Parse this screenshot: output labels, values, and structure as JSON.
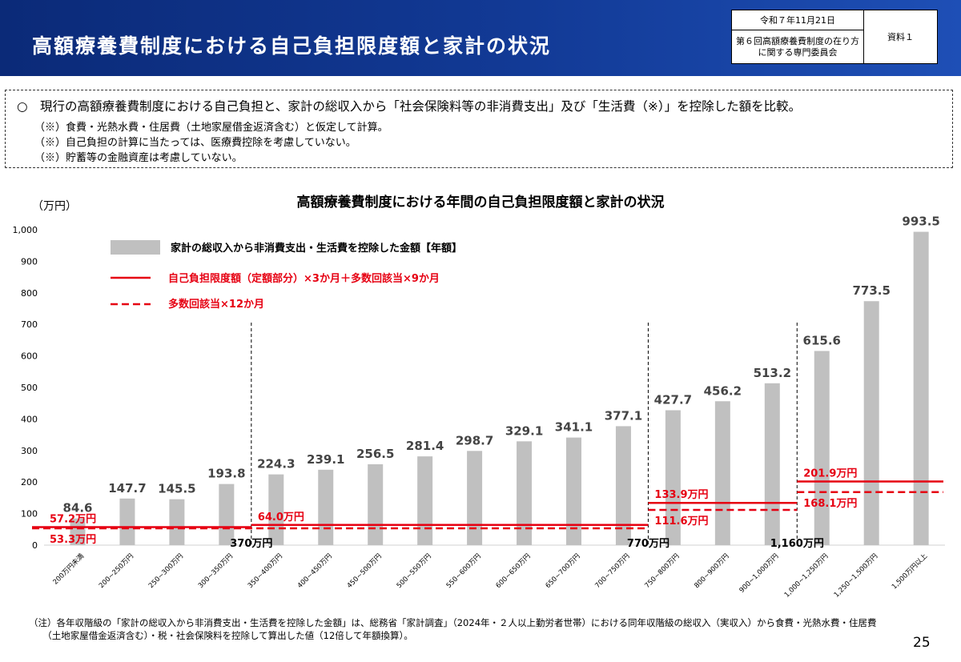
{
  "header": {
    "title": "高額療養費制度における自己負担限度額と家計の状況",
    "date": "令和７年11月21日",
    "committee": "第６回高額療養費制度の在り方に関する専門委員会",
    "doc_label": "資料１",
    "background_color": "#123a96"
  },
  "notes": {
    "main": "○　現行の高額療養費制度における自己負担と、家計の総収入から「社会保険料等の非消費支出」及び「生活費（※）」を控除した額を比較。",
    "sub": [
      "（※）食費・光熱水費・住居費（土地家屋借金返済含む）と仮定して計算。",
      "（※）自己負担の計算に当たっては、医療費控除を考慮していない。",
      "（※）貯蓄等の金融資産は考慮していない。"
    ]
  },
  "chart_data": {
    "type": "bar",
    "title": "高額療養費制度における年間の自己負担限度額と家計の状況",
    "ylabel": "（万円）",
    "ylim": [
      0,
      1000
    ],
    "yticks": [
      "0",
      "100",
      "200",
      "300",
      "400",
      "500",
      "600",
      "700",
      "800",
      "900",
      "1,000"
    ],
    "categories": [
      "200万円未満",
      "200~250万円",
      "250~300万円",
      "300~350万円",
      "350~400万円",
      "400~450万円",
      "450~500万円",
      "500~550万円",
      "550~600万円",
      "600~650万円",
      "650~700万円",
      "700~750万円",
      "750~800万円",
      "800~900万円",
      "900~1,000万円",
      "1,000~1,250万円",
      "1,250~1,500万円",
      "1,500万円以上"
    ],
    "series": [
      {
        "name": "家計の総収入から非消費支出・生活費を控除した金額【年額】",
        "color": "#c0c0c0",
        "values": [
          84.6,
          147.7,
          145.5,
          193.8,
          224.3,
          239.1,
          256.5,
          281.4,
          298.7,
          329.1,
          341.1,
          377.1,
          427.7,
          456.2,
          513.2,
          615.6,
          773.5,
          993.5
        ],
        "labels": [
          "84.6",
          "147.7",
          "145.5",
          "193.8",
          "224.3",
          "239.1",
          "256.5",
          "281.4",
          "298.7",
          "329.1",
          "341.1",
          "377.1",
          "427.7",
          "456.2",
          "513.2",
          "615.6",
          "773.5",
          "993.5"
        ]
      }
    ],
    "step_lines": [
      {
        "name": "自己負担限度額（定額部分）×3か月＋多数回該当×9か月",
        "style": "solid",
        "color": "#e60012",
        "segments": [
          {
            "from_category": 0,
            "to_category": 4,
            "value": 57.2,
            "label": "57.2万円"
          },
          {
            "from_category": 4,
            "to_category": 12,
            "value": 64.0,
            "label": "64.0万円"
          },
          {
            "from_category": 12,
            "to_category": 15,
            "value": 133.9,
            "label": "133.9万円"
          },
          {
            "from_category": 15,
            "to_category": 17,
            "value": 201.9,
            "label": "201.9万円"
          }
        ]
      },
      {
        "name": "多数回該当×12か月",
        "style": "dashed",
        "color": "#e60012",
        "segments": [
          {
            "from_category": 0,
            "to_category": 12,
            "value": 53.3,
            "label": "53.3万円"
          },
          {
            "from_category": 12,
            "to_category": 15,
            "value": 111.6,
            "label": "111.6万円"
          },
          {
            "from_category": 15,
            "to_category": 17,
            "value": 168.1,
            "label": "168.1万円"
          }
        ]
      }
    ],
    "thresholds": [
      {
        "between_categories": [
          3,
          4
        ],
        "label": "370万円"
      },
      {
        "between_categories": [
          11,
          12
        ],
        "label": "770万円"
      },
      {
        "between_categories": [
          14,
          15
        ],
        "label": "1,160万円"
      }
    ],
    "legend_placement": "top-left",
    "grid": false
  },
  "footnote": {
    "lines": [
      "（注）各年収階級の「家計の総収入から非消費支出・生活費を控除した金額」は、総務省「家計調査」（2024年・２人以上勤労者世帯）における同年収階級の総収入（実収入）から食費・光熱水費・住居費",
      "　　（土地家屋借金返済含む）・税・社会保険料を控除して算出した値（12倍して年額換算）。"
    ]
  },
  "page_number": "25"
}
